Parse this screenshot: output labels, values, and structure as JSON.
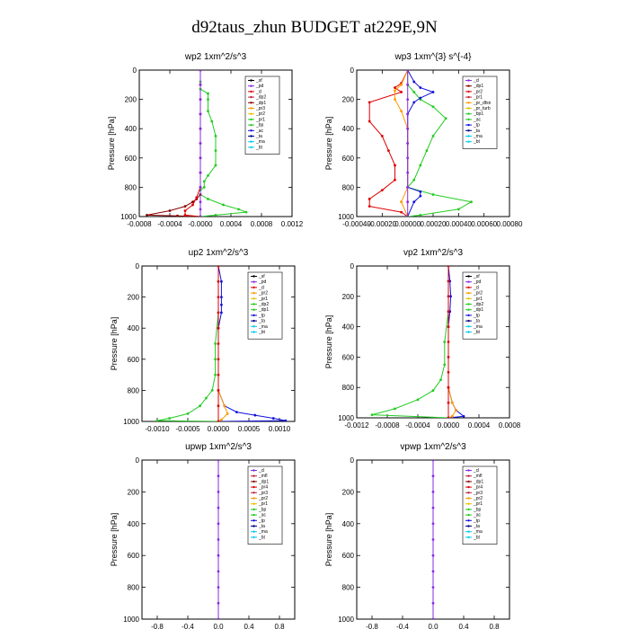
{
  "title": "d92taus_zhun  BUDGET at229E,9N",
  "colors": {
    "black": "#000000",
    "purple": "#8a2be2",
    "red": "#dd0000",
    "darkred": "#8b0000",
    "crimson": "#c0203c",
    "orange": "#ff9900",
    "gold": "#e6c000",
    "green": "#22cc22",
    "blue": "#1010dd",
    "darkblue": "#000088",
    "cyan": "#00ccee",
    "violet": "#b060d0"
  },
  "chart_data": [
    {
      "type": "line",
      "title": "wp2   1xm^2/s^3",
      "ylabel": "Pressure  [hPa]",
      "yticks": [
        "0",
        "200",
        "400",
        "600",
        "800",
        "1000"
      ],
      "ylim": [
        1000,
        0
      ],
      "xlim": [
        -0.0008,
        0.0012
      ],
      "xticks": [
        -0.0008,
        -0.0004,
        0.0,
        0.0004,
        0.0008,
        0.0012
      ],
      "xticklabels": [
        "-0.0008",
        "-0.0004",
        "-0.0000",
        "0.0004",
        "0.0008",
        "0.0012"
      ],
      "legend": [
        "_sf",
        "_pd",
        "_cl",
        "_dp2",
        "_dp1",
        "_pr3",
        "_pr2",
        "_pr1",
        "_bp",
        "_ac",
        "_ta",
        "_ma",
        "_bt"
      ],
      "legend_colors": [
        "black",
        "purple",
        "red",
        "crimson",
        "darkred",
        "orange",
        "gold",
        "green",
        "green",
        "blue",
        "darkblue",
        "cyan",
        "cyan"
      ],
      "series": [
        {
          "color": "green",
          "x": [
            0,
            0,
            0,
            0,
            0.0001,
            0.0001,
            0.0001,
            0.00015,
            0.0002,
            0.0002,
            0.0002,
            0.0001,
            5e-05,
            5e-05,
            0,
            0,
            0.0001,
            0.0003,
            0.0005,
            0.0006,
            0.0002,
            0
          ],
          "y": [
            0,
            80,
            100,
            130,
            160,
            200,
            280,
            350,
            450,
            550,
            650,
            720,
            760,
            800,
            820,
            850,
            880,
            920,
            950,
            970,
            990,
            1000
          ]
        },
        {
          "color": "darkred",
          "x": [
            0,
            0,
            0,
            0,
            0,
            0,
            0,
            0,
            0,
            0,
            -5e-05,
            -0.0001,
            -0.0002,
            -0.0004,
            -0.0007,
            -0.0003,
            0
          ],
          "y": [
            0,
            100,
            200,
            300,
            400,
            500,
            600,
            700,
            800,
            850,
            880,
            900,
            930,
            960,
            990,
            995,
            1000
          ]
        },
        {
          "color": "red",
          "x": [
            0,
            0,
            0,
            -5e-05,
            -0.0001,
            -0.0002,
            -0.0002,
            0
          ],
          "y": [
            0,
            100,
            800,
            870,
            920,
            960,
            990,
            1000
          ]
        },
        {
          "color": "purple",
          "x": [
            0,
            0,
            0,
            0,
            0,
            0,
            0,
            0,
            0,
            0,
            0,
            0
          ],
          "y": [
            0,
            100,
            200,
            300,
            400,
            500,
            600,
            700,
            800,
            900,
            950,
            1000
          ]
        }
      ]
    },
    {
      "type": "line",
      "title": "wp3   1xm^{3} s^{-4}",
      "ylabel": "Pressure  [hPa]",
      "yticks": [
        "0",
        "200",
        "400",
        "600",
        "800",
        "1000"
      ],
      "ylim": [
        1000,
        0
      ],
      "xlim": [
        -0.0004,
        0.0008
      ],
      "xticks": [
        -0.0004,
        -0.0002,
        0.0,
        0.0002,
        0.0004,
        0.0006,
        0.0008
      ],
      "xticklabels": [
        "-0.00040",
        "-0.00020",
        "0.00000",
        "0.00020",
        "0.00040",
        "0.00060",
        "0.00080"
      ],
      "legend": [
        "_cl",
        "_dp1",
        "_pr2",
        "_pr1",
        "_pr_dfsn",
        "_pr_turb",
        "_bp1",
        "_ac",
        "_tp",
        "_ta",
        "_ma",
        "_bt"
      ],
      "legend_colors": [
        "purple",
        "darkred",
        "red",
        "crimson",
        "orange",
        "gold",
        "green",
        "green",
        "blue",
        "darkblue",
        "cyan",
        "cyan"
      ],
      "series": [
        {
          "color": "green",
          "x": [
            0,
            0,
            5e-05,
            0.0001,
            0.0002,
            0.0003,
            0.0002,
            0.00015,
            0.0001,
            5e-05,
            0,
            0.0002,
            0.0005,
            0.0004,
            0.0001,
            0
          ],
          "y": [
            0,
            100,
            150,
            200,
            250,
            330,
            450,
            550,
            650,
            750,
            800,
            850,
            900,
            950,
            990,
            1000
          ]
        },
        {
          "color": "blue",
          "x": [
            0,
            5e-05,
            0.0001,
            0.0002,
            0.0001,
            5e-05,
            0,
            0,
            0,
            0.0001,
            0.0001,
            5e-05,
            0
          ],
          "y": [
            0,
            80,
            120,
            150,
            190,
            220,
            300,
            500,
            800,
            830,
            860,
            900,
            1000
          ]
        },
        {
          "color": "red",
          "x": [
            0,
            -5e-05,
            -0.0001,
            -5e-05,
            -0.0003,
            -0.0003,
            -0.0002,
            -0.00015,
            -0.0001,
            -0.0001,
            -0.0002,
            -0.0003,
            -0.0003,
            -5e-05,
            0
          ],
          "y": [
            0,
            90,
            120,
            150,
            220,
            350,
            450,
            550,
            650,
            750,
            820,
            880,
            930,
            970,
            1000
          ]
        },
        {
          "color": "orange",
          "x": [
            0,
            -5e-05,
            -0.0001,
            -0.0001,
            -5e-05,
            0,
            0,
            -5e-05,
            0
          ],
          "y": [
            0,
            100,
            140,
            200,
            280,
            400,
            800,
            900,
            1000
          ]
        },
        {
          "color": "purple",
          "x": [
            0,
            0,
            0,
            0,
            0,
            0,
            0,
            0,
            0,
            0,
            0
          ],
          "y": [
            0,
            100,
            200,
            300,
            400,
            500,
            600,
            700,
            800,
            900,
            1000
          ]
        }
      ]
    },
    {
      "type": "line",
      "title": "up2    1xm^2/s^3",
      "ylabel": "Pressure  [hPa]",
      "yticks": [
        "0",
        "200",
        "400",
        "600",
        "800",
        "1000"
      ],
      "ylim": [
        1000,
        0
      ],
      "xlim": [
        -0.00125,
        0.00125
      ],
      "xticks": [
        -0.001,
        -0.0005,
        0.0,
        0.0005,
        0.001
      ],
      "xticklabels": [
        "-0.0010",
        "-0.0005",
        "0.0000",
        "0.0005",
        "0.0010"
      ],
      "legend": [
        "_sf",
        "_pd",
        "_cl",
        "_pr2",
        "_pr1",
        "_dp2",
        "_dp1",
        "_tp",
        "_ta",
        "_ma",
        "_bt"
      ],
      "legend_colors": [
        "black",
        "purple",
        "red",
        "orange",
        "gold",
        "green",
        "green",
        "blue",
        "darkblue",
        "cyan",
        "cyan"
      ],
      "series": [
        {
          "color": "green",
          "x": [
            0,
            0,
            0,
            -5e-05,
            -5e-05,
            -5e-05,
            -0.0001,
            -0.0002,
            -0.0003,
            -0.0005,
            -0.0008,
            -0.001,
            0
          ],
          "y": [
            0,
            100,
            300,
            500,
            600,
            700,
            800,
            850,
            900,
            950,
            980,
            995,
            1000
          ]
        },
        {
          "color": "blue",
          "x": [
            0,
            5e-05,
            5e-05,
            5e-05,
            5e-05,
            0,
            0,
            0.0001,
            0.0003,
            0.0006,
            0.0009,
            0.0011,
            0
          ],
          "y": [
            0,
            100,
            200,
            250,
            300,
            400,
            800,
            900,
            940,
            960,
            980,
            995,
            1000
          ]
        },
        {
          "color": "orange",
          "x": [
            0,
            0,
            0.0001,
            0.00015,
            5e-05,
            0
          ],
          "y": [
            0,
            800,
            900,
            950,
            990,
            1000
          ]
        },
        {
          "color": "red",
          "x": [
            0,
            0,
            0,
            0,
            0,
            0,
            0,
            0,
            0,
            0,
            0
          ],
          "y": [
            0,
            100,
            200,
            300,
            400,
            500,
            600,
            700,
            800,
            900,
            1000
          ]
        }
      ]
    },
    {
      "type": "line",
      "title": "vp2    1xm^2/s^3",
      "ylabel": "Pressure  [hPa]",
      "yticks": [
        "0",
        "200",
        "400",
        "600",
        "800",
        "1000"
      ],
      "ylim": [
        1000,
        0
      ],
      "xlim": [
        -0.0012,
        0.0008
      ],
      "xticks": [
        -0.0012,
        -0.0008,
        -0.0004,
        0.0,
        0.0004,
        0.0008
      ],
      "xticklabels": [
        "-0.0012",
        "-0.0008",
        "-0.0004",
        "0.0000",
        "0.0004",
        "0.0008"
      ],
      "legend": [
        "_sf",
        "_pd",
        "_cl",
        "_pr2",
        "_pr1",
        "_dp2",
        "_dp1",
        "_tp",
        "_ta",
        "_ma",
        "_bt"
      ],
      "legend_colors": [
        "black",
        "purple",
        "red",
        "orange",
        "gold",
        "green",
        "green",
        "blue",
        "darkblue",
        "cyan",
        "cyan"
      ],
      "series": [
        {
          "color": "green",
          "x": [
            0,
            0,
            0,
            -5e-05,
            -5e-05,
            -0.0001,
            -0.0002,
            -0.0004,
            -0.0007,
            -0.001,
            0
          ],
          "y": [
            0,
            100,
            300,
            500,
            650,
            750,
            820,
            880,
            940,
            980,
            1000
          ]
        },
        {
          "color": "blue",
          "x": [
            0,
            2e-05,
            3e-05,
            2e-05,
            0,
            0,
            5e-05,
            0.0001,
            0.0002,
            0
          ],
          "y": [
            0,
            100,
            200,
            300,
            400,
            800,
            900,
            950,
            990,
            1000
          ]
        },
        {
          "color": "orange",
          "x": [
            0,
            0,
            5e-05,
            0.0001,
            5e-05,
            0
          ],
          "y": [
            0,
            800,
            900,
            950,
            990,
            1000
          ]
        },
        {
          "color": "red",
          "x": [
            0,
            0,
            0,
            0,
            0,
            0,
            0,
            0,
            0,
            0,
            0
          ],
          "y": [
            0,
            100,
            200,
            300,
            400,
            500,
            600,
            700,
            800,
            900,
            1000
          ]
        }
      ]
    },
    {
      "type": "line",
      "title": "upwp   1xm^2/s^3",
      "ylabel": "Pressure  [hPa]",
      "yticks": [
        "0",
        "200",
        "400",
        "600",
        "800",
        "1000"
      ],
      "ylim": [
        1000,
        0
      ],
      "xlim": [
        -1,
        1
      ],
      "xticks": [
        -0.8,
        -0.4,
        0.0,
        0.4,
        0.8
      ],
      "xticklabels": [
        "-0.8",
        "-0.4",
        "0.0",
        "0.4",
        "0.8"
      ],
      "legend": [
        "_cl",
        "_mfl",
        "_dp1",
        "_pr4",
        "_pr3",
        "_pr2",
        "_pr1",
        "_bp",
        "_ac",
        "_tp",
        "_ta",
        "_ma",
        "_bt"
      ],
      "legend_colors": [
        "purple",
        "crimson",
        "darkred",
        "red",
        "crimson",
        "orange",
        "gold",
        "green",
        "green",
        "blue",
        "darkblue",
        "cyan",
        "cyan"
      ],
      "series": [
        {
          "color": "purple",
          "x": [
            0,
            0,
            0,
            0,
            0,
            0,
            0,
            0,
            0,
            0,
            0
          ],
          "y": [
            0,
            100,
            200,
            300,
            400,
            500,
            600,
            700,
            800,
            900,
            1000
          ]
        }
      ]
    },
    {
      "type": "line",
      "title": "vpwp   1xm^2/s^3",
      "ylabel": "Pressure  [hPa]",
      "yticks": [
        "0",
        "200",
        "400",
        "600",
        "800",
        "1000"
      ],
      "ylim": [
        1000,
        0
      ],
      "xlim": [
        -1,
        1
      ],
      "xticks": [
        -0.8,
        -0.4,
        0.0,
        0.4,
        0.8
      ],
      "xticklabels": [
        "-0.8",
        "-0.4",
        "0.0",
        "0.4",
        "0.8"
      ],
      "legend": [
        "_cl",
        "_mfl",
        "_dp1",
        "_pr4",
        "_pr3",
        "_pr2",
        "_pr1",
        "_bp",
        "_ac",
        "_tp",
        "_ta",
        "_ma",
        "_bt"
      ],
      "legend_colors": [
        "purple",
        "crimson",
        "darkred",
        "red",
        "crimson",
        "orange",
        "gold",
        "green",
        "green",
        "blue",
        "darkblue",
        "cyan",
        "cyan"
      ],
      "series": [
        {
          "color": "purple",
          "x": [
            0,
            0,
            0,
            0,
            0,
            0,
            0,
            0,
            0,
            0,
            0
          ],
          "y": [
            0,
            100,
            200,
            300,
            400,
            500,
            600,
            700,
            800,
            900,
            1000
          ]
        }
      ]
    }
  ]
}
